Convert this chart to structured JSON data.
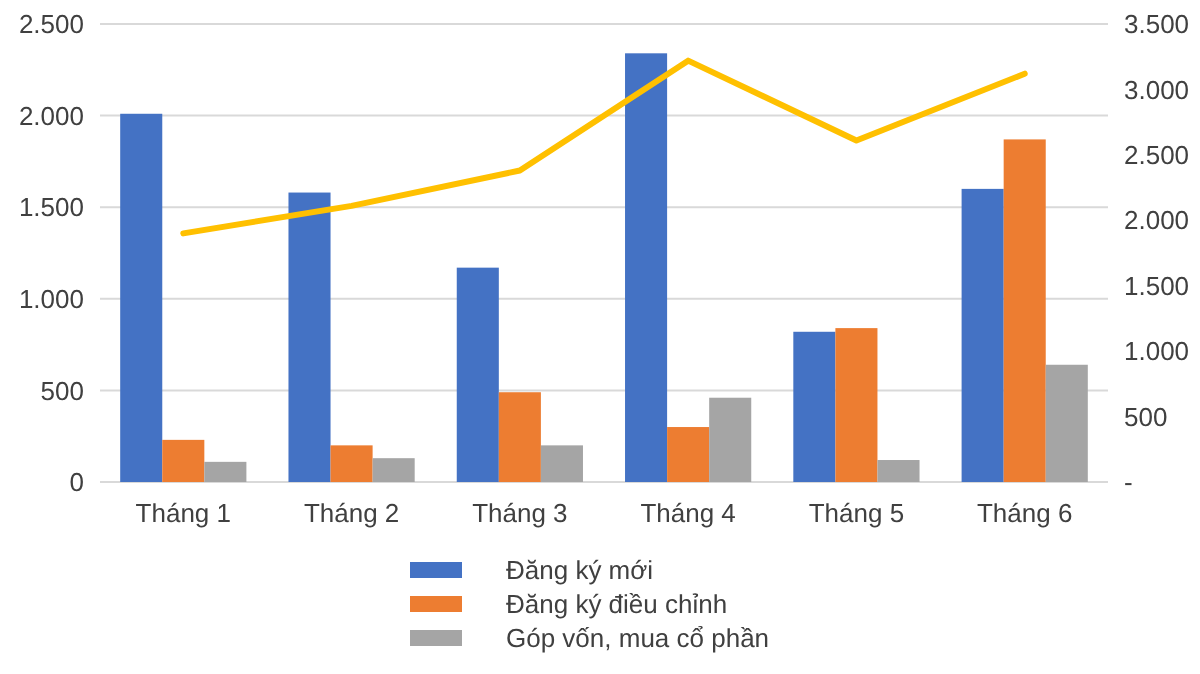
{
  "chart_data": {
    "type": "bar",
    "categories": [
      "Tháng 1",
      "Tháng 2",
      "Tháng 3",
      "Tháng 4",
      "Tháng 5",
      "Tháng 6"
    ],
    "series": [
      {
        "name": "Đăng ký mới",
        "color": "#4472c4",
        "values": [
          2010,
          1580,
          1170,
          2340,
          820,
          1600
        ]
      },
      {
        "name": "Đăng ký điều chỉnh",
        "color": "#ed7d31",
        "values": [
          230,
          200,
          490,
          300,
          840,
          1870
        ]
      },
      {
        "name": "Góp vốn, mua cổ phần",
        "color": "#a5a5a5",
        "values": [
          110,
          130,
          200,
          460,
          120,
          640
        ]
      },
      {
        "type": "line",
        "axis": "y2",
        "color": "#ffc000",
        "values": [
          1900,
          2110,
          2380,
          3220,
          2610,
          3120
        ]
      }
    ],
    "ylim": [
      0,
      2500
    ],
    "yticks": [
      {
        "value": 0,
        "label": "0"
      },
      {
        "value": 500,
        "label": "500"
      },
      {
        "value": 1000,
        "label": "1.000"
      },
      {
        "value": 1500,
        "label": "1.500"
      },
      {
        "value": 2000,
        "label": "2.000"
      },
      {
        "value": 2500,
        "label": "2.500"
      }
    ],
    "y2lim": [
      0,
      3500
    ],
    "y2ticks": [
      {
        "value": 0,
        "label": "-"
      },
      {
        "value": 500,
        "label": "500"
      },
      {
        "value": 1000,
        "label": "1.000"
      },
      {
        "value": 1500,
        "label": "1.500"
      },
      {
        "value": 2000,
        "label": "2.000"
      },
      {
        "value": 2500,
        "label": "2.500"
      },
      {
        "value": 3000,
        "label": "3.000"
      },
      {
        "value": 3500,
        "label": "3.500"
      }
    ],
    "grid": "y",
    "legend": "bottom"
  }
}
